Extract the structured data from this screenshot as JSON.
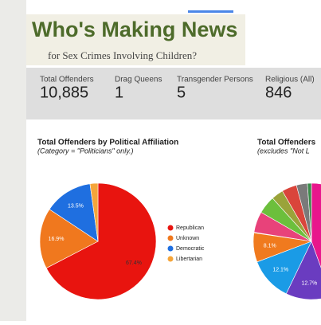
{
  "header": {
    "title": "Who's Making News",
    "subtitle": "for Sex Crimes Involving Children?"
  },
  "stats": [
    {
      "label": "Total Offenders",
      "value": "10,885"
    },
    {
      "label": "Drag Queens",
      "value": "1"
    },
    {
      "label": "Transgender Persons",
      "value": "5"
    },
    {
      "label": "Religious (All)",
      "value": "846"
    }
  ],
  "chart_data": [
    {
      "type": "pie",
      "title": "Total Offenders by Political Affiliation",
      "subtitle": "(Category = \"Politicians\" only.)",
      "categories": [
        "Republican",
        "Unknown",
        "Democratic",
        "Libertarian"
      ],
      "values": [
        67.4,
        16.9,
        13.5,
        2.2
      ],
      "value_labels": [
        "67.4%",
        "16.9%",
        "13.5%",
        null
      ],
      "colors": [
        "#e8140f",
        "#f0781e",
        "#1f6fe0",
        "#f5a53a"
      ],
      "legend": "right"
    },
    {
      "type": "pie",
      "title": "Total Offenders",
      "subtitle": "(excludes \"Not L",
      "values": [
        12.7,
        12.1,
        8.1
      ],
      "value_labels": [
        "12.7%",
        "12.1%",
        "8.1%"
      ],
      "colors": [
        "#6a3cc0",
        "#1a9be6",
        "#f07a1e"
      ]
    }
  ]
}
